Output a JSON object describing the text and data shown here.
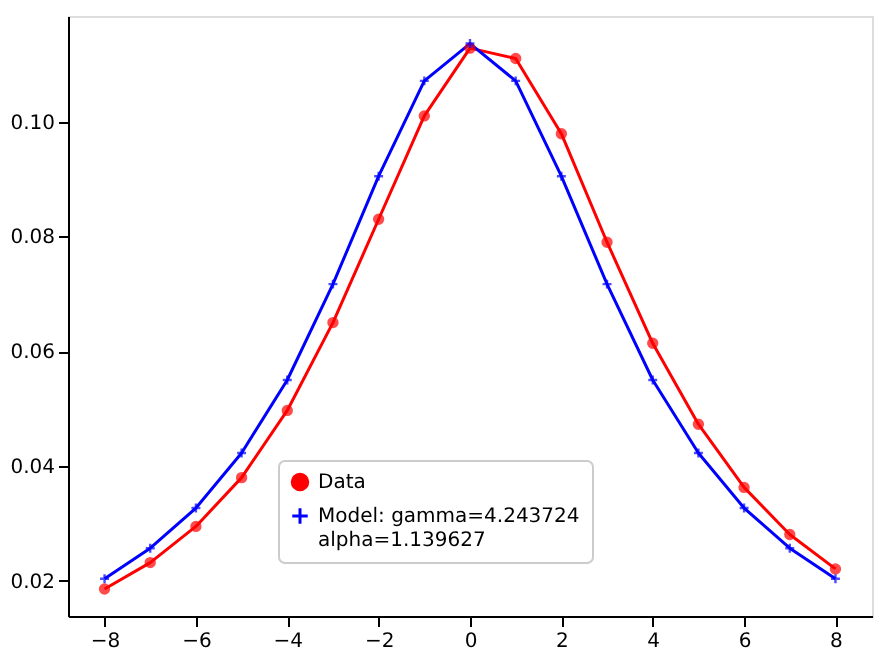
{
  "chart_data": {
    "type": "line",
    "x": [
      -8,
      -7,
      -6,
      -5,
      -4,
      -3,
      -2,
      -1,
      0,
      1,
      2,
      3,
      4,
      5,
      6,
      7,
      8
    ],
    "series": [
      {
        "name": "Data",
        "color": "#ff0000",
        "marker": "circle",
        "values": [
          0.0186,
          0.0232,
          0.0295,
          0.038,
          0.0497,
          0.065,
          0.083,
          0.101,
          0.1128,
          0.111,
          0.0979,
          0.079,
          0.0614,
          0.0473,
          0.0363,
          0.0281,
          0.0221
        ]
      },
      {
        "name": "Model: gamma=4.243724\nalpha=1.139627",
        "color": "#0000ff",
        "marker": "cross",
        "values": [
          0.0204,
          0.0257,
          0.0327,
          0.0423,
          0.055,
          0.0717,
          0.0905,
          0.1071,
          0.1136,
          0.1071,
          0.0905,
          0.0717,
          0.055,
          0.0423,
          0.0327,
          0.0257,
          0.0204
        ]
      }
    ],
    "xlim": [
      -8.8,
      8.8
    ],
    "xticks": [
      -8,
      -6,
      -4,
      -2,
      0,
      2,
      4,
      6,
      8
    ],
    "ylim": [
      0.0139,
      0.1184
    ],
    "yticks": [
      {
        "value": 0.02,
        "label": "0.02"
      },
      {
        "value": 0.04,
        "label": "0.04"
      },
      {
        "value": 0.06,
        "label": "0.06"
      },
      {
        "value": 0.08,
        "label": "0.08"
      },
      {
        "value": 0.1,
        "label": "0.10"
      }
    ],
    "grid": false,
    "legend": "bottom",
    "line_style": "solid"
  }
}
